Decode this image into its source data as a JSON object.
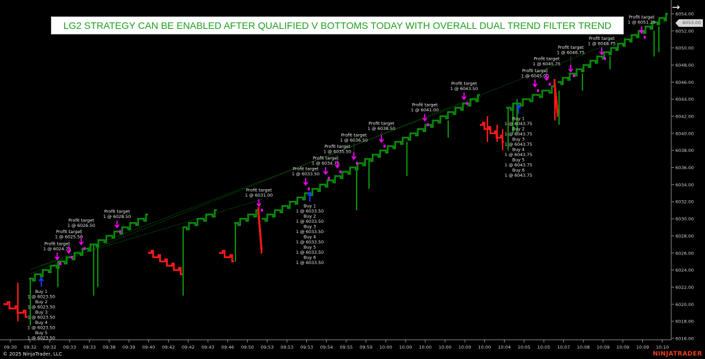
{
  "title": "LG2 STRATEGY CAN BE ENABLED AFTER QUALIFIED V BOTTOMS TODAY WITH OVERALL DUAL TREND FILTER TREND",
  "copyright": "© 2025 NinjaTrader, LLC",
  "logo": "NINJATRADER",
  "navigate_icon": "arrow-right-icon",
  "current_price": "6053.00",
  "colors": {
    "up": "#0a8a0a",
    "down": "#ff1a1a",
    "profit_marker": "#ff00ff",
    "buy_marker": "#1a3cff",
    "title_text": "#1e9e1e",
    "background": "#000000"
  },
  "chart_data": {
    "type": "renko",
    "ylim": [
      6016,
      6054
    ],
    "y_ticks": [
      "6054.00",
      "6052.00",
      "6050.00",
      "6048.00",
      "6046.00",
      "6044.00",
      "6042.00",
      "6040.00",
      "6038.00",
      "6036.00",
      "6034.00",
      "6032.00",
      "6030.00",
      "6028.00",
      "6026.00",
      "6024.00",
      "6022.00",
      "6020.00",
      "6018.00",
      "6016.00"
    ],
    "x_ticks": [
      "09:30",
      "09:32",
      "09:32",
      "09:33",
      "09:33",
      "09:38",
      "09:39",
      "09:40",
      "09:42",
      "09:42",
      "09:43",
      "09:46",
      "09:50",
      "09:53",
      "09:53",
      "09:53",
      "09:54",
      "09:55",
      "09:59",
      "10:00",
      "10:00",
      "10:00",
      "10:00",
      "10:00",
      "10:00",
      "10:04",
      "10:05",
      "10:05",
      "10:07",
      "10:08",
      "10:09",
      "10:09",
      "10:09",
      "10:10"
    ],
    "segments": [
      {
        "direction": "down",
        "open": 6020.0,
        "close": 6018.5
      },
      {
        "direction": "up",
        "open": 6023.0,
        "close": 6030.5
      },
      {
        "direction": "down",
        "open": 6026.0,
        "close": 6023.5
      },
      {
        "direction": "up",
        "open": 6029.0,
        "close": 6031.0
      },
      {
        "direction": "down",
        "open": 6026.0,
        "close": 6025.0
      },
      {
        "direction": "up",
        "open": 6029.5,
        "close": 6031.0
      },
      {
        "direction": "down",
        "open": 6031.0,
        "close": 6026.0
      },
      {
        "direction": "up",
        "open": 6030.0,
        "close": 6044.5
      },
      {
        "direction": "down",
        "open": 6041.0,
        "close": 6039.0
      },
      {
        "direction": "up",
        "open": 6043.0,
        "close": 6045.5
      },
      {
        "direction": "down",
        "open": 6046.0,
        "close": 6042.0
      },
      {
        "direction": "up",
        "open": 6046.0,
        "close": 6054.0
      }
    ],
    "profit_targets": [
      {
        "label": "Profit target",
        "fill": "1 @ 6024.75",
        "price": 6024.75
      },
      {
        "label": "Profit target",
        "fill": "1 @ 6025.50",
        "price": 6025.5
      },
      {
        "label": "Profit target",
        "fill": "1 @ 6026.50",
        "price": 6026.5
      },
      {
        "label": "Profit target",
        "fill": "1 @ 6028.50",
        "price": 6028.5
      },
      {
        "label": "Profit target",
        "fill": "1 @ 6031.00",
        "price": 6031.0
      },
      {
        "label": "Profit target",
        "fill": "1 @ 6033.50",
        "price": 6033.5
      },
      {
        "label": "Profit target",
        "fill": "1 @ 6034.75",
        "price": 6034.75
      },
      {
        "label": "Profit target",
        "fill": "1 @ 6035.50",
        "price": 6035.5
      },
      {
        "label": "Profit target",
        "fill": "1 @ 6036.50",
        "price": 6036.5
      },
      {
        "label": "Profit target",
        "fill": "1 @ 6038.50",
        "price": 6038.5
      },
      {
        "label": "Profit target",
        "fill": "1 @ 6041.00",
        "price": 6041.0
      },
      {
        "label": "Profit target",
        "fill": "1 @ 6043.50",
        "price": 6043.5
      },
      {
        "label": "Profit target",
        "fill": "1 @ 6045.00",
        "price": 6045.0
      },
      {
        "label": "Profit target",
        "fill": "1 @ 6045.75",
        "price": 6045.75
      },
      {
        "label": "Profit target",
        "fill": "1 @ 6046.75",
        "price": 6046.75
      },
      {
        "label": "Profit target",
        "fill": "1 @ 6048.75",
        "price": 6048.75
      },
      {
        "label": "Profit target",
        "fill": "1 @ 6051.25",
        "price": 6051.25
      }
    ],
    "buy_groups": [
      {
        "price": 6023.5,
        "entries": [
          {
            "label": "Buy 1",
            "fill": "1 @ 6023.50"
          },
          {
            "label": "Buy 2",
            "fill": "1 @ 6023.50"
          },
          {
            "label": "Buy 3",
            "fill": "1 @ 6023.50"
          },
          {
            "label": "Buy 4",
            "fill": "1 @ 6023.50"
          },
          {
            "label": "Buy 5",
            "fill": "1 @ 6023.50"
          }
        ]
      },
      {
        "price": 6033.5,
        "entries": [
          {
            "label": "Buy 1",
            "fill": "1 @ 6033.50"
          },
          {
            "label": "Buy 2",
            "fill": "1 @ 6033.50"
          },
          {
            "label": "Buy 3",
            "fill": "1 @ 6033.50"
          },
          {
            "label": "Buy 4",
            "fill": "1 @ 6033.50"
          },
          {
            "label": "Buy 5",
            "fill": "1 @ 6033.50"
          },
          {
            "label": "Buy 6",
            "fill": "1 @ 6033.50"
          }
        ]
      },
      {
        "price": 6043.75,
        "entries": [
          {
            "label": "Buy 1",
            "fill": "1 @ 6043.75"
          },
          {
            "label": "Buy 2",
            "fill": "1 @ 6043.75"
          },
          {
            "label": "Buy 3",
            "fill": "1 @ 6043.75"
          },
          {
            "label": "Buy 4",
            "fill": "1 @ 6043.75"
          },
          {
            "label": "Buy 5",
            "fill": "1 @ 6043.75"
          },
          {
            "label": "Buy 6",
            "fill": "1 @ 6043.75"
          }
        ]
      }
    ]
  }
}
